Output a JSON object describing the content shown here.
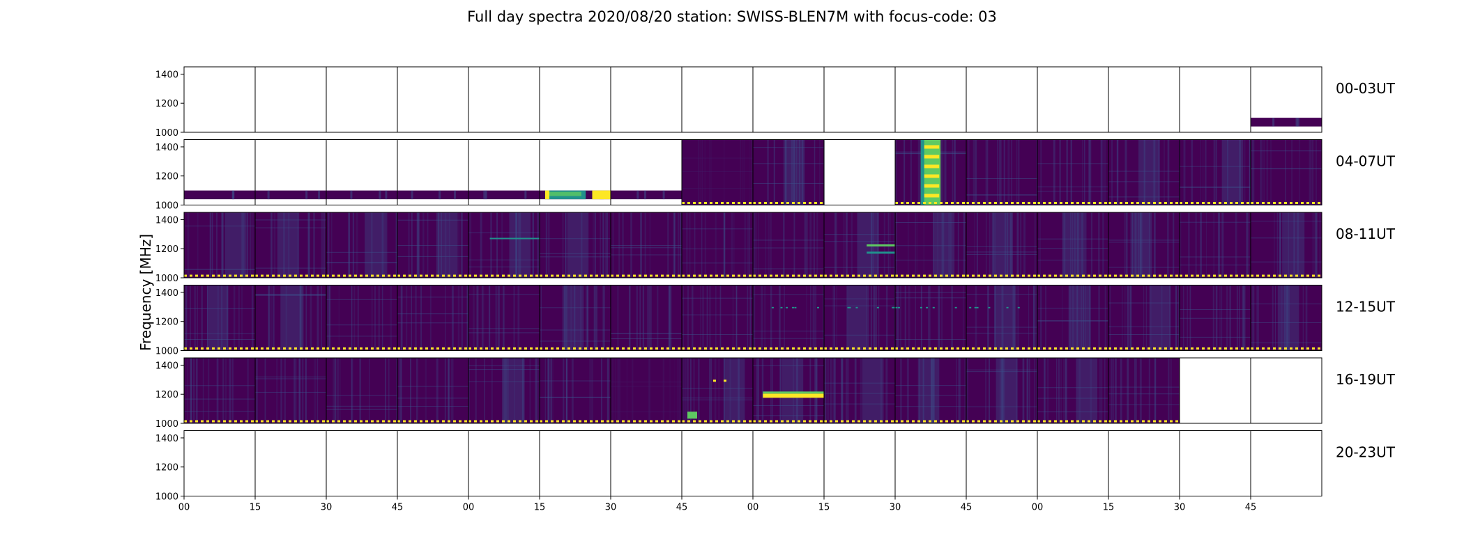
{
  "chart_data": {
    "type": "heatmap",
    "title": "Full day spectra 2020/08/20 station: SWISS-BLEN7M with focus-code: 03",
    "ylabel": "Frequency [MHz]",
    "xlabel": "",
    "ylim": [
      1000,
      1450
    ],
    "yticks": [
      "1400",
      "1200",
      "1000"
    ],
    "xticks": [
      "00",
      "15",
      "30",
      "45",
      "00",
      "15",
      "30",
      "45",
      "00",
      "15",
      "30",
      "45",
      "00",
      "15",
      "30",
      "45"
    ],
    "panels_per_row": 16,
    "colormap": [
      "#440154",
      "#3b528b",
      "#21918c",
      "#5ec962",
      "#fde725"
    ],
    "rows": [
      {
        "label": "00-03UT",
        "panels": [
          "empty",
          "empty",
          "empty",
          "empty",
          "empty",
          "empty",
          "empty",
          "empty",
          "empty",
          "empty",
          "empty",
          "empty",
          "empty",
          "empty",
          "empty",
          "band"
        ]
      },
      {
        "label": "04-07UT",
        "panels": [
          "band",
          "band",
          "band",
          "band",
          "band-end",
          "band-burst",
          "band",
          "full-dark",
          "full-mid",
          "empty",
          "burst-strong",
          "full",
          "full-lines",
          "full",
          "full",
          "full"
        ]
      },
      {
        "label": "08-11UT",
        "panels": [
          "full",
          "full",
          "full",
          "full",
          "full-line",
          "full",
          "full",
          "full",
          "full",
          "full-spot",
          "full",
          "full",
          "full",
          "full",
          "full",
          "full"
        ]
      },
      {
        "label": "12-15UT",
        "panels": [
          "full",
          "full",
          "full",
          "full",
          "full",
          "full",
          "full",
          "full",
          "full-dots",
          "full-dots",
          "full-dots",
          "full-dots",
          "full",
          "full",
          "full",
          "full"
        ]
      },
      {
        "label": "16-19UT",
        "panels": [
          "full",
          "full",
          "full",
          "full",
          "full",
          "full",
          "full-dark",
          "full-burst",
          "full-line-strong",
          "full",
          "full",
          "full",
          "full",
          "full",
          "empty",
          "empty"
        ]
      },
      {
        "label": "20-23UT",
        "panels": [
          "empty",
          "empty",
          "empty",
          "empty",
          "empty",
          "empty",
          "empty",
          "empty",
          "empty",
          "empty",
          "empty",
          "empty",
          "empty",
          "empty",
          "empty",
          "empty"
        ]
      }
    ]
  }
}
